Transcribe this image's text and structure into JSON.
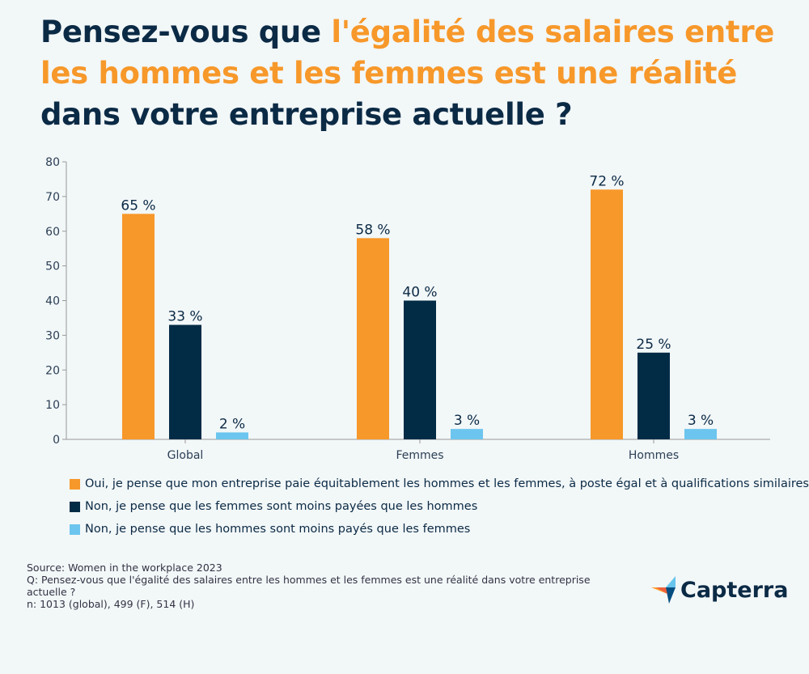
{
  "title": {
    "part1": "Pensez-vous que ",
    "highlight": "l'égalité des salaires entre les hommes et les femmes est une réalité",
    "part2": " dans votre entreprise actuelle ?"
  },
  "chart_data": {
    "type": "bar",
    "categories": [
      "Global",
      "Femmes",
      "Hommes"
    ],
    "series": [
      {
        "name": "Oui, je pense que mon entreprise paie équitablement les hommes et les femmes, à poste égal et à qualifications similaires",
        "values": [
          65,
          58,
          72
        ],
        "labels": [
          "65 %",
          "58 %",
          "72 %"
        ],
        "color": "#f7982a"
      },
      {
        "name": "Non, je pense que les femmes sont moins payées que les hommes",
        "values": [
          33,
          40,
          25
        ],
        "labels": [
          "33 %",
          "40 %",
          "25 %"
        ],
        "color": "#022c46"
      },
      {
        "name": "Non, je pense que les hommes sont moins payés que les femmes",
        "values": [
          2,
          3,
          3
        ],
        "labels": [
          "2 %",
          "3 %",
          "3 %"
        ],
        "color": "#6cc5ee"
      }
    ],
    "ylim": [
      0,
      80
    ],
    "yticks": [
      0,
      10,
      20,
      30,
      40,
      50,
      60,
      70,
      80
    ],
    "grid": false,
    "legend": "bottom-left"
  },
  "footer": {
    "source": "Source: Women in the workplace 2023",
    "question": "Q: Pensez-vous que l'égalité des salaires entre les hommes et les femmes est une réalité dans votre entreprise actuelle ?",
    "sample": "n: 1013 (global), 499 (F), 514 (H)"
  },
  "logo": {
    "text": "Capterra"
  }
}
